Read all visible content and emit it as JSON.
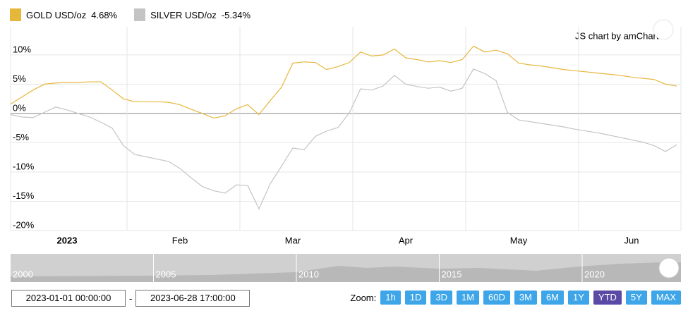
{
  "chart_data": {
    "type": "line",
    "credit": "JS chart by amCharts",
    "categories": [
      null,
      null,
      null,
      null,
      null,
      "2023",
      null,
      null,
      null,
      null,
      null,
      null,
      null,
      null,
      null,
      "Feb",
      null,
      null,
      null,
      null,
      null,
      null,
      null,
      null,
      null,
      "Mar",
      null,
      null,
      null,
      null,
      null,
      null,
      null,
      null,
      null,
      "Apr",
      null,
      null,
      null,
      null,
      null,
      null,
      null,
      null,
      null,
      "May",
      null,
      null,
      null,
      null,
      null,
      null,
      null,
      null,
      null,
      "Jun",
      null,
      null,
      null,
      null
    ],
    "series": [
      {
        "name": "GOLD USD/oz",
        "legend_label": "4.68%",
        "color": "#e5b73b",
        "values": [
          1.6,
          2.8,
          4.0,
          5.0,
          5.2,
          5.3,
          5.3,
          5.4,
          5.4,
          4.0,
          2.5,
          2.0,
          2.0,
          2.0,
          1.9,
          1.5,
          0.7,
          0.0,
          -0.8,
          -0.4,
          0.8,
          1.5,
          -0.2,
          2.2,
          4.5,
          8.6,
          8.8,
          8.7,
          7.5,
          8.0,
          8.7,
          10.5,
          9.8,
          10.0,
          11.0,
          9.5,
          9.2,
          8.8,
          9.0,
          8.7,
          9.2,
          11.5,
          10.5,
          10.8,
          10.2,
          8.6,
          8.3,
          8.1,
          7.8,
          7.5,
          7.3,
          7.1,
          6.9,
          6.7,
          6.5,
          6.2,
          6.0,
          5.8,
          5.0,
          4.68
        ]
      },
      {
        "name": "SILVER USD/oz",
        "legend_label": "-5.34%",
        "color": "#c4c4c4",
        "values": [
          -0.2,
          -0.6,
          -0.7,
          0.2,
          1.1,
          0.6,
          0.0,
          -0.6,
          -1.5,
          -2.5,
          -5.5,
          -7.0,
          -7.4,
          -7.8,
          -8.2,
          -9.4,
          -11.0,
          -12.5,
          -13.2,
          -13.6,
          -12.2,
          -12.3,
          -16.3,
          -12.0,
          -9.0,
          -5.9,
          -6.2,
          -3.9,
          -3.0,
          -2.4,
          0.1,
          4.2,
          4.0,
          4.7,
          6.5,
          5.0,
          4.6,
          4.3,
          4.5,
          3.8,
          4.3,
          7.6,
          6.8,
          5.6,
          0.2,
          -1.1,
          -1.4,
          -1.7,
          -2.0,
          -2.3,
          -2.7,
          -3.0,
          -3.3,
          -3.7,
          -4.1,
          -4.5,
          -4.9,
          -5.5,
          -6.5,
          -5.34
        ]
      }
    ],
    "ylim": [
      -20,
      14.8
    ],
    "yticks": [
      {
        "value": -20,
        "label": "-20%"
      },
      {
        "value": -15,
        "label": "-15%"
      },
      {
        "value": -10,
        "label": "-10%"
      },
      {
        "value": -5,
        "label": "-5%"
      },
      {
        "value": 0,
        "label": "0%"
      },
      {
        "value": 5,
        "label": "5%"
      },
      {
        "value": 10,
        "label": "10%"
      }
    ],
    "grid": true
  },
  "navigator": {
    "labels": [
      "2000",
      "2005",
      "2010",
      "2015",
      "2020"
    ]
  },
  "date_range": {
    "from": "2023-01-01 00:00:00",
    "separator": "-",
    "to": "2023-06-28 17:00:00"
  },
  "zoom": {
    "label": "Zoom:",
    "buttons": [
      "1h",
      "1D",
      "3D",
      "1M",
      "60D",
      "3M",
      "6M",
      "1Y",
      "YTD",
      "5Y",
      "MAX"
    ],
    "active": "YTD"
  }
}
